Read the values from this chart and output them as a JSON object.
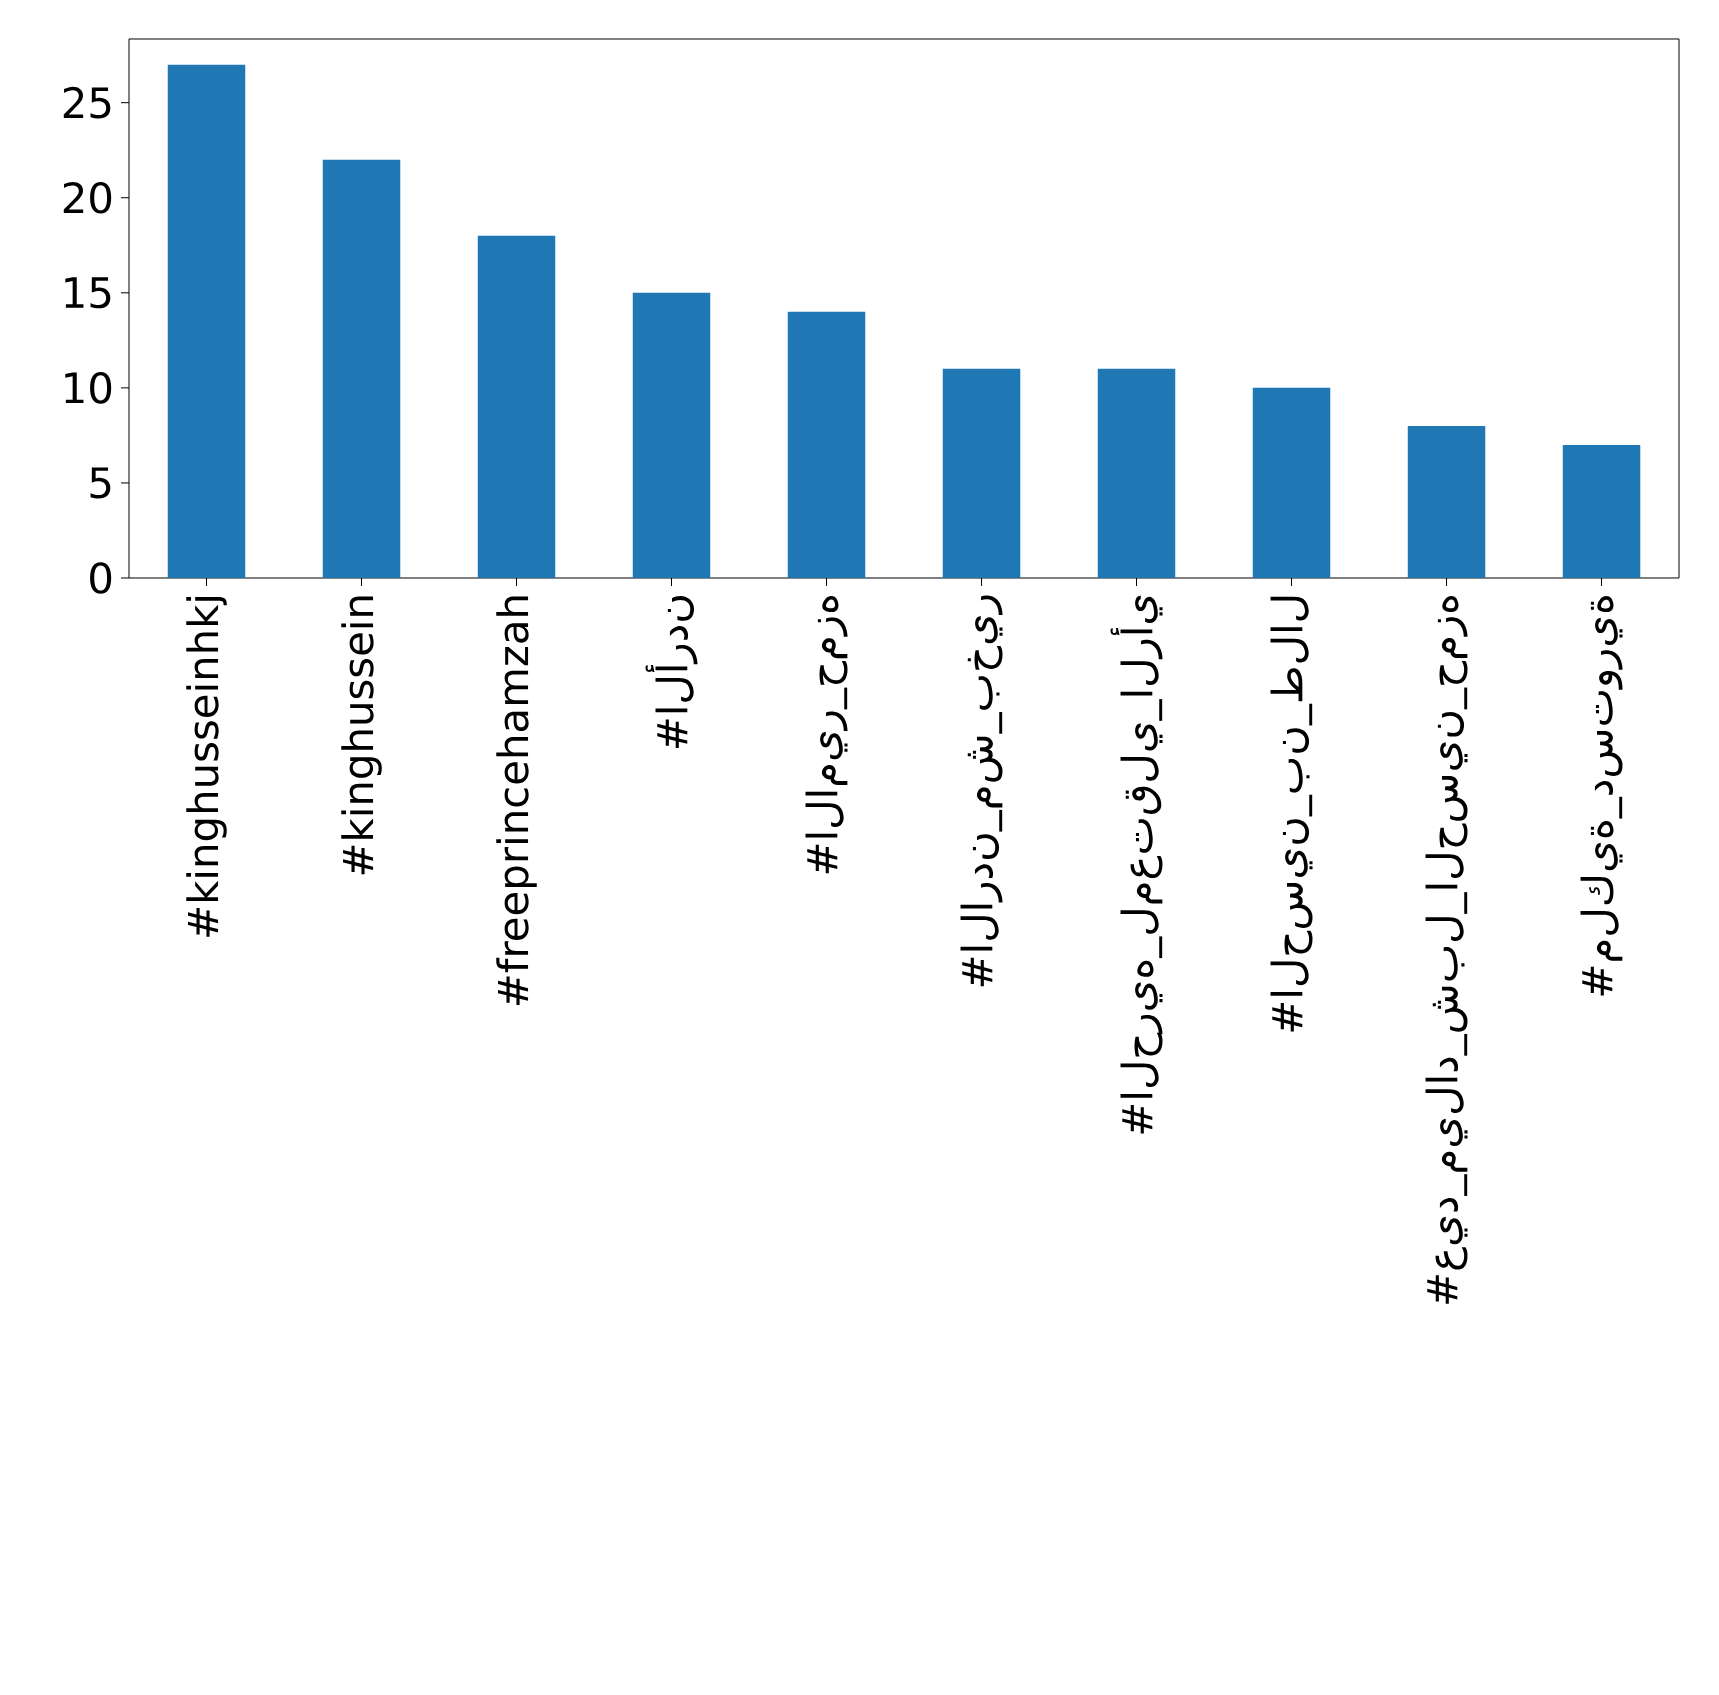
{
  "chart_data": {
    "type": "bar",
    "categories": [
      "#kinghusseinhkj",
      "#kinghussein",
      "#freeprincehamzah",
      "#الأردن",
      "#الامير_حمزه",
      "#الاردن_مش_بخير",
      "#الحريه_لمعتقلي_الرأي",
      "#الحسين_بن_طلال",
      "#عيد_ميلاد_شبل_الحسين_حمزه",
      "#ملكية_دستورية"
    ],
    "values": [
      27,
      22,
      18,
      15,
      14,
      11,
      11,
      10,
      8,
      7
    ],
    "color": "#1f77b4",
    "ylim": [
      0,
      28.35
    ],
    "yticks": [
      0,
      5,
      10,
      15,
      20,
      25
    ]
  }
}
